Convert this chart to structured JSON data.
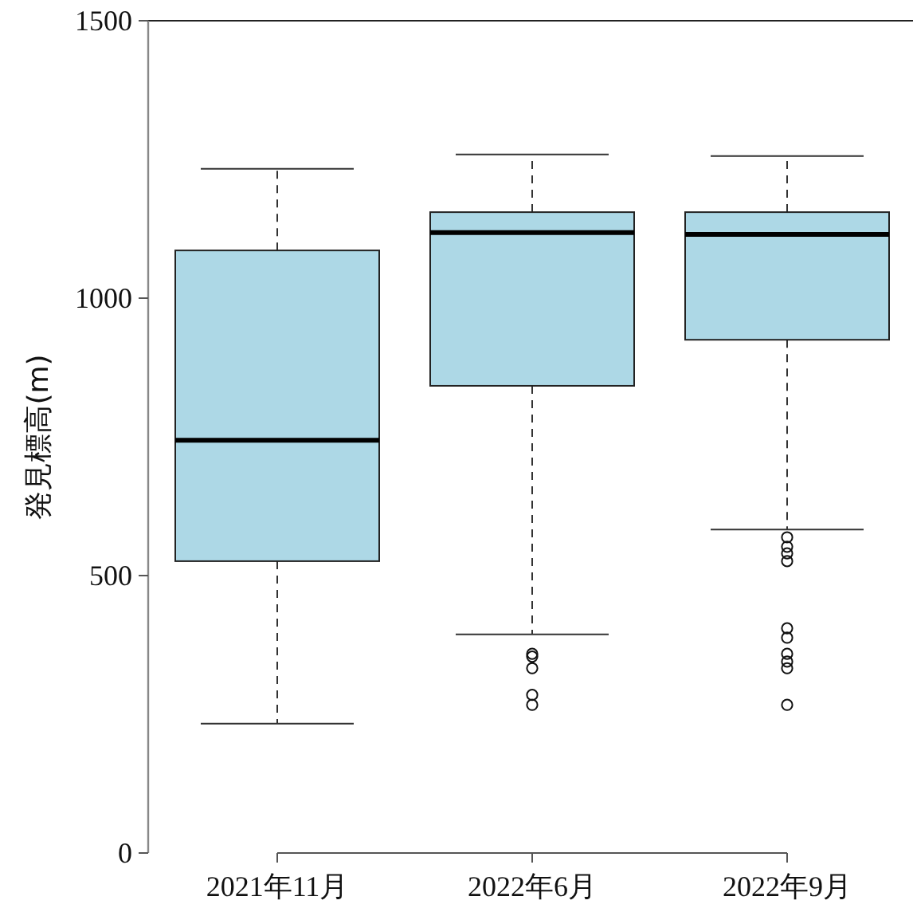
{
  "chart_data": {
    "type": "box",
    "ylabel": "発見標高(m)",
    "categories": [
      "2021年11月",
      "2022年6月",
      "2022年9月"
    ],
    "color": "#add8e6",
    "ylim": [
      0,
      1500
    ],
    "yticks": [
      0,
      500,
      1000,
      1500
    ],
    "boxes": [
      {
        "low": 233,
        "q1": 526,
        "median": 744,
        "q3": 1086,
        "high": 1233
      },
      {
        "low": 394,
        "q1": 842,
        "median": 1118,
        "q3": 1155,
        "high": 1259,
        "outliers": [
          359,
          354,
          333,
          285,
          267
        ]
      },
      {
        "low": 583,
        "q1": 925,
        "median": 1115,
        "q3": 1155,
        "high": 1256,
        "outliers": [
          569,
          552,
          540,
          526,
          405,
          388,
          359,
          345,
          333,
          267
        ]
      }
    ]
  }
}
